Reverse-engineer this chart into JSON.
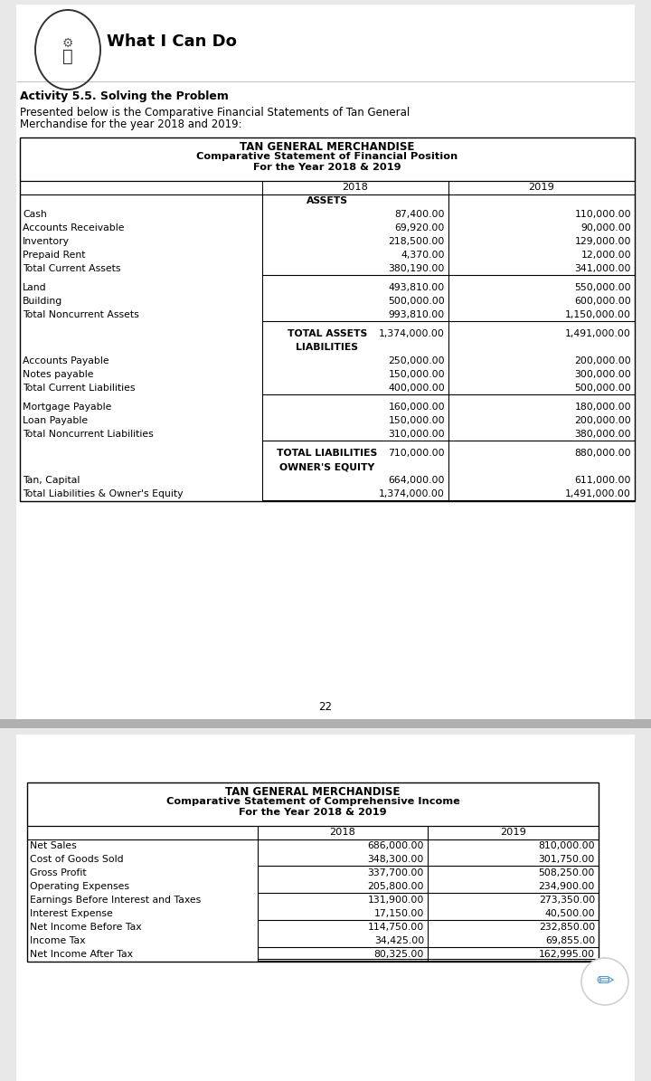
{
  "page_bg": "#e8e8e8",
  "content_bg": "#ffffff",
  "title_what": "What I Can Do",
  "activity_label": "Activity 5.5. Solving the Problem",
  "intro_line1": "Presented below is the Comparative Financial Statements of Tan General",
  "intro_line2": "Merchandise for the year 2018 and 2019:",
  "page_number": "22",
  "table1_title1": "TAN GENERAL MERCHANDISE",
  "table1_title2": "Comparative Statement of Financial Position",
  "table1_title3": "For the Year 2018 & 2019",
  "table1_rows": [
    {
      "label": "ASSETS",
      "v2018": "",
      "v2019": "",
      "type": "section_header"
    },
    {
      "label": "Cash",
      "v2018": "87,400.00",
      "v2019": "110,000.00",
      "type": "data"
    },
    {
      "label": "Accounts Receivable",
      "v2018": "69,920.00",
      "v2019": "90,000.00",
      "type": "data"
    },
    {
      "label": "Inventory",
      "v2018": "218,500.00",
      "v2019": "129,000.00",
      "type": "data"
    },
    {
      "label": "Prepaid Rent",
      "v2018": "4,370.00",
      "v2019": "12,000.00",
      "type": "data"
    },
    {
      "label": "Total Current Assets",
      "v2018": "380,190.00",
      "v2019": "341,000.00",
      "type": "subtotal"
    },
    {
      "label": "",
      "v2018": "",
      "v2019": "",
      "type": "spacer"
    },
    {
      "label": "Land",
      "v2018": "493,810.00",
      "v2019": "550,000.00",
      "type": "data"
    },
    {
      "label": "Building",
      "v2018": "500,000.00",
      "v2019": "600,000.00",
      "type": "data"
    },
    {
      "label": "Total Noncurrent Assets",
      "v2018": "993,810.00",
      "v2019": "1,150,000.00",
      "type": "subtotal"
    },
    {
      "label": "",
      "v2018": "",
      "v2019": "",
      "type": "spacer"
    },
    {
      "label": "TOTAL ASSETS",
      "v2018": "1,374,000.00",
      "v2019": "1,491,000.00",
      "type": "total"
    },
    {
      "label": "LIABILITIES",
      "v2018": "",
      "v2019": "",
      "type": "section_header"
    },
    {
      "label": "Accounts Payable",
      "v2018": "250,000.00",
      "v2019": "200,000.00",
      "type": "data"
    },
    {
      "label": "Notes payable",
      "v2018": "150,000.00",
      "v2019": "300,000.00",
      "type": "data"
    },
    {
      "label": "Total Current Liabilities",
      "v2018": "400,000.00",
      "v2019": "500,000.00",
      "type": "subtotal"
    },
    {
      "label": "",
      "v2018": "",
      "v2019": "",
      "type": "spacer"
    },
    {
      "label": "Mortgage Payable",
      "v2018": "160,000.00",
      "v2019": "180,000.00",
      "type": "data"
    },
    {
      "label": "Loan Payable",
      "v2018": "150,000.00",
      "v2019": "200,000.00",
      "type": "data"
    },
    {
      "label": "Total Noncurrent Liabilities",
      "v2018": "310,000.00",
      "v2019": "380,000.00",
      "type": "subtotal"
    },
    {
      "label": "",
      "v2018": "",
      "v2019": "",
      "type": "spacer"
    },
    {
      "label": "TOTAL LIABILITIES",
      "v2018": "710,000.00",
      "v2019": "880,000.00",
      "type": "total"
    },
    {
      "label": "OWNER'S EQUITY",
      "v2018": "",
      "v2019": "",
      "type": "section_header"
    },
    {
      "label": "Tan, Capital",
      "v2018": "664,000.00",
      "v2019": "611,000.00",
      "type": "data"
    },
    {
      "label": "Total Liabilities & Owner's Equity",
      "v2018": "1,374,000.00",
      "v2019": "1,491,000.00",
      "type": "subtotal"
    }
  ],
  "table2_title1": "TAN GENERAL MERCHANDISE",
  "table2_title2": "Comparative Statement of Comprehensive Income",
  "table2_title3": "For the Year 2018 & 2019",
  "table2_rows": [
    {
      "label": "Net Sales",
      "v2018": "686,000.00",
      "v2019": "810,000.00",
      "type": "data"
    },
    {
      "label": "Cost of Goods Sold",
      "v2018": "348,300.00",
      "v2019": "301,750.00",
      "type": "underline"
    },
    {
      "label": "Gross Profit",
      "v2018": "337,700.00",
      "v2019": "508,250.00",
      "type": "data"
    },
    {
      "label": "Operating Expenses",
      "v2018": "205,800.00",
      "v2019": "234,900.00",
      "type": "underline"
    },
    {
      "label": "Earnings Before Interest and Taxes",
      "v2018": "131,900.00",
      "v2019": "273,350.00",
      "type": "data"
    },
    {
      "label": "Interest Expense",
      "v2018": "17,150.00",
      "v2019": "40,500.00",
      "type": "underline"
    },
    {
      "label": "Net Income Before Tax",
      "v2018": "114,750.00",
      "v2019": "232,850.00",
      "type": "data"
    },
    {
      "label": "Income Tax",
      "v2018": "34,425.00",
      "v2019": "69,855.00",
      "type": "underline"
    },
    {
      "label": "Net Income After Tax",
      "v2018": "80,325.00",
      "v2019": "162,995.00",
      "type": "double_underline"
    }
  ]
}
